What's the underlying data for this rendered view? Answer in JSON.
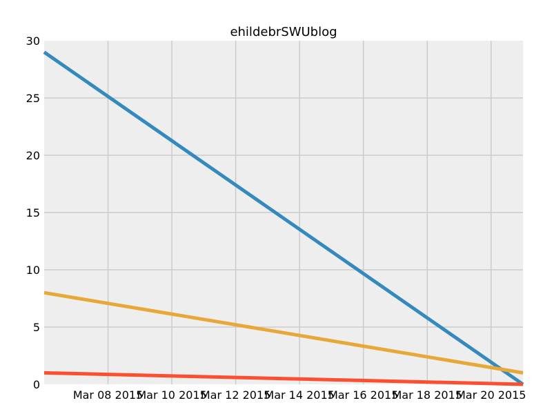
{
  "chart_data": {
    "type": "line",
    "title": "ehildebrSWUblog",
    "xlabel": "",
    "ylabel": "",
    "x_axis": {
      "type": "date",
      "range": [
        "2015-03-06",
        "2015-03-21"
      ],
      "ticks": [
        {
          "date": "2015-03-08",
          "label": "Mar 08 2015"
        },
        {
          "date": "2015-03-10",
          "label": "Mar 10 2015"
        },
        {
          "date": "2015-03-12",
          "label": "Mar 12 2015"
        },
        {
          "date": "2015-03-14",
          "label": "Mar 14 2015"
        },
        {
          "date": "2015-03-16",
          "label": "Mar 16 2015"
        },
        {
          "date": "2015-03-18",
          "label": "Mar 18 2015"
        },
        {
          "date": "2015-03-20",
          "label": "Mar 20 2015"
        }
      ]
    },
    "ylim": [
      0,
      30
    ],
    "y_ticks": [
      0,
      5,
      10,
      15,
      20,
      25,
      30
    ],
    "grid": true,
    "background": "#eeeeee",
    "series": [
      {
        "color": "#348abd",
        "x": [
          "2015-03-06",
          "2015-03-21"
        ],
        "y": [
          29,
          0
        ]
      },
      {
        "color": "#e8a838",
        "x": [
          "2015-03-06",
          "2015-03-21"
        ],
        "y": [
          8,
          1
        ]
      },
      {
        "color": "#fc4f30",
        "x": [
          "2015-03-06",
          "2015-03-21"
        ],
        "y": [
          1,
          0
        ]
      }
    ]
  }
}
